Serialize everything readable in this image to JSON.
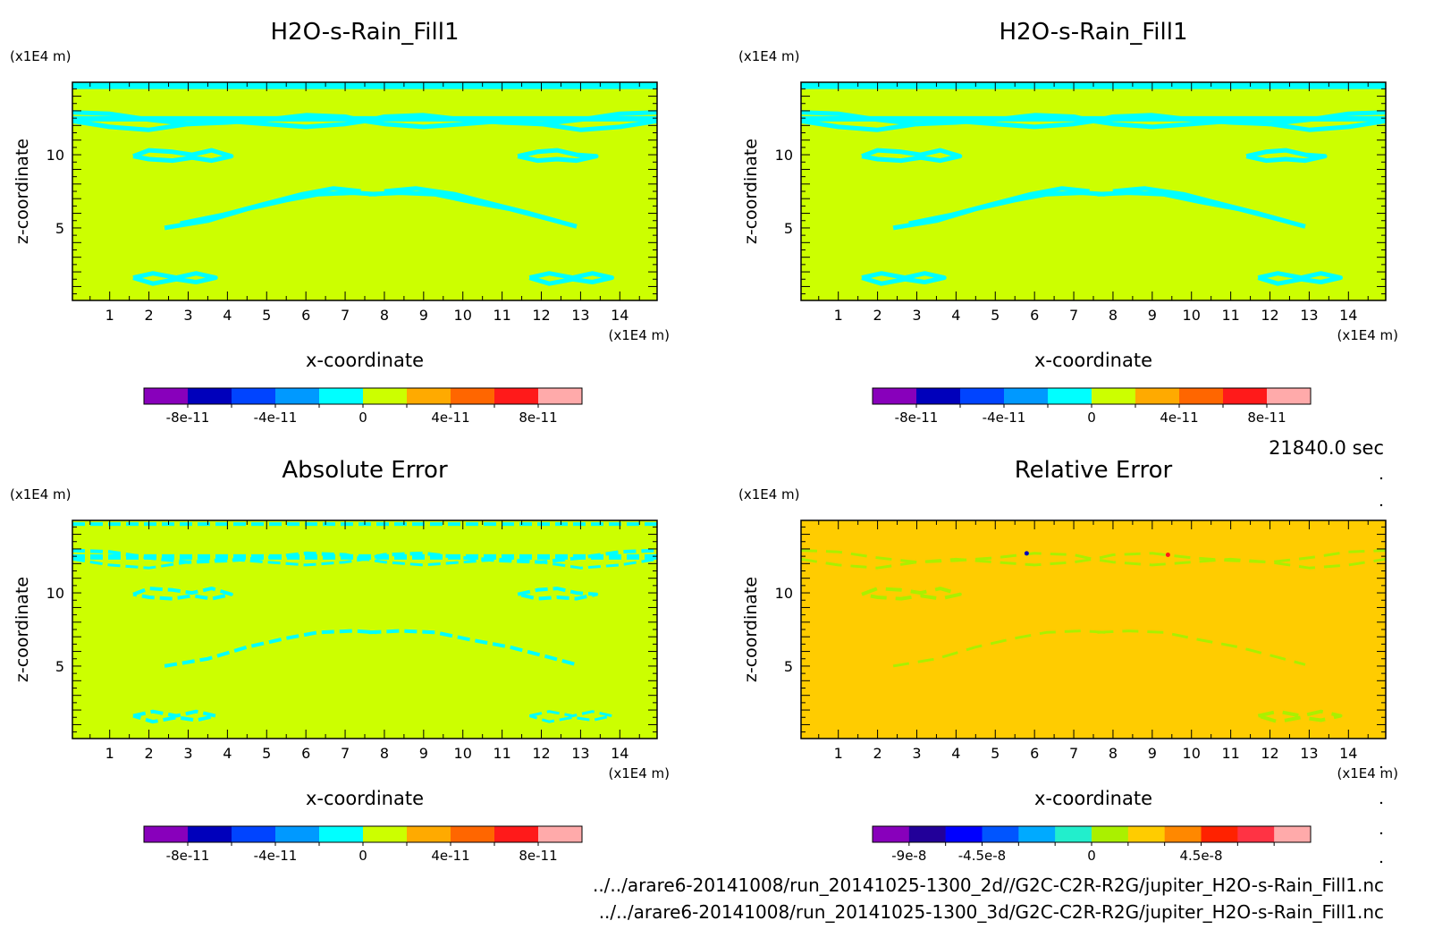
{
  "figure": {
    "time_label": "21840.0 sec",
    "files": [
      "../../arare6-20141008/run_20141025-1300_2d//G2C-C2R-R2G/jupiter_H2O-s-Rain_Fill1.nc",
      "../../arare6-20141008/run_20141025-1300_3d/G2C-C2R-R2G/jupiter_H2O-s-Rain_Fill1.nc"
    ]
  },
  "chart_data": [
    {
      "type": "heatmap",
      "title": "H2O-s-Rain_Fill1",
      "xlabel": "x-coordinate",
      "ylabel": "z-coordinate",
      "x_unit": "(x1E4 m)",
      "y_unit": "(x1E4 m)",
      "xlim": [
        0.05,
        14.95
      ],
      "ylim": [
        0.05,
        14.95
      ],
      "xticks": [
        1,
        2,
        3,
        4,
        5,
        6,
        7,
        8,
        9,
        10,
        11,
        12,
        13,
        14
      ],
      "yticks": [
        5,
        10
      ],
      "background_color": "#ccff00",
      "feature_color": "#00ffff",
      "colorbar": {
        "colors": [
          "#8800bb",
          "#0000bb",
          "#0044ff",
          "#0099ff",
          "#00ffff",
          "#ccff00",
          "#ffaa00",
          "#ff6600",
          "#ff1a1a",
          "#ffaaaa"
        ],
        "labels": [
          "-8e-11",
          "-4e-11",
          "0",
          "4e-11",
          "8e-11"
        ],
        "label_positions": [
          1,
          3,
          5,
          7,
          9
        ]
      }
    },
    {
      "type": "heatmap",
      "title": "H2O-s-Rain_Fill1",
      "xlabel": "x-coordinate",
      "ylabel": "z-coordinate",
      "x_unit": "(x1E4 m)",
      "y_unit": "(x1E4 m)",
      "xlim": [
        0.05,
        14.95
      ],
      "ylim": [
        0.05,
        14.95
      ],
      "xticks": [
        1,
        2,
        3,
        4,
        5,
        6,
        7,
        8,
        9,
        10,
        11,
        12,
        13,
        14
      ],
      "yticks": [
        5,
        10
      ],
      "background_color": "#ccff00",
      "feature_color": "#00ffff",
      "colorbar": {
        "colors": [
          "#8800bb",
          "#0000bb",
          "#0044ff",
          "#0099ff",
          "#00ffff",
          "#ccff00",
          "#ffaa00",
          "#ff6600",
          "#ff1a1a",
          "#ffaaaa"
        ],
        "labels": [
          "-8e-11",
          "-4e-11",
          "0",
          "4e-11",
          "8e-11"
        ],
        "label_positions": [
          1,
          3,
          5,
          7,
          9
        ]
      }
    },
    {
      "type": "heatmap",
      "title": "Absolute Error",
      "xlabel": "x-coordinate",
      "ylabel": "z-coordinate",
      "x_unit": "(x1E4 m)",
      "y_unit": "(x1E4 m)",
      "xlim": [
        0.05,
        14.95
      ],
      "ylim": [
        0.05,
        14.95
      ],
      "xticks": [
        1,
        2,
        3,
        4,
        5,
        6,
        7,
        8,
        9,
        10,
        11,
        12,
        13,
        14
      ],
      "yticks": [
        5,
        10
      ],
      "background_color": "#ccff00",
      "feature_color": "#00ffff",
      "colorbar": {
        "colors": [
          "#8800bb",
          "#0000bb",
          "#0044ff",
          "#0099ff",
          "#00ffff",
          "#ccff00",
          "#ffaa00",
          "#ff6600",
          "#ff1a1a",
          "#ffaaaa"
        ],
        "labels": [
          "-8e-11",
          "-4e-11",
          "0",
          "4e-11",
          "8e-11"
        ],
        "label_positions": [
          1,
          3,
          5,
          7,
          9
        ]
      }
    },
    {
      "type": "heatmap",
      "title": "Relative Error",
      "xlabel": "x-coordinate",
      "ylabel": "z-coordinate",
      "x_unit": "(x1E4 m)",
      "y_unit": "(x1E4 m)",
      "xlim": [
        0.05,
        14.95
      ],
      "ylim": [
        0.05,
        14.95
      ],
      "xticks": [
        1,
        2,
        3,
        4,
        5,
        6,
        7,
        8,
        9,
        10,
        11,
        12,
        13,
        14
      ],
      "yticks": [
        5,
        10
      ],
      "background_color": "#ffcc00",
      "feature_color": "#aaf000",
      "colorbar": {
        "colors": [
          "#8800bb",
          "#220099",
          "#0000ff",
          "#0055ff",
          "#00aaff",
          "#22eecc",
          "#aaf000",
          "#ffcc00",
          "#ff8800",
          "#ff2200",
          "#ff3344",
          "#ffaaaa"
        ],
        "labels": [
          "-9e-8",
          "-4.5e-8",
          "0",
          "4.5e-8"
        ],
        "label_positions": [
          1,
          3,
          6,
          9
        ]
      }
    }
  ]
}
